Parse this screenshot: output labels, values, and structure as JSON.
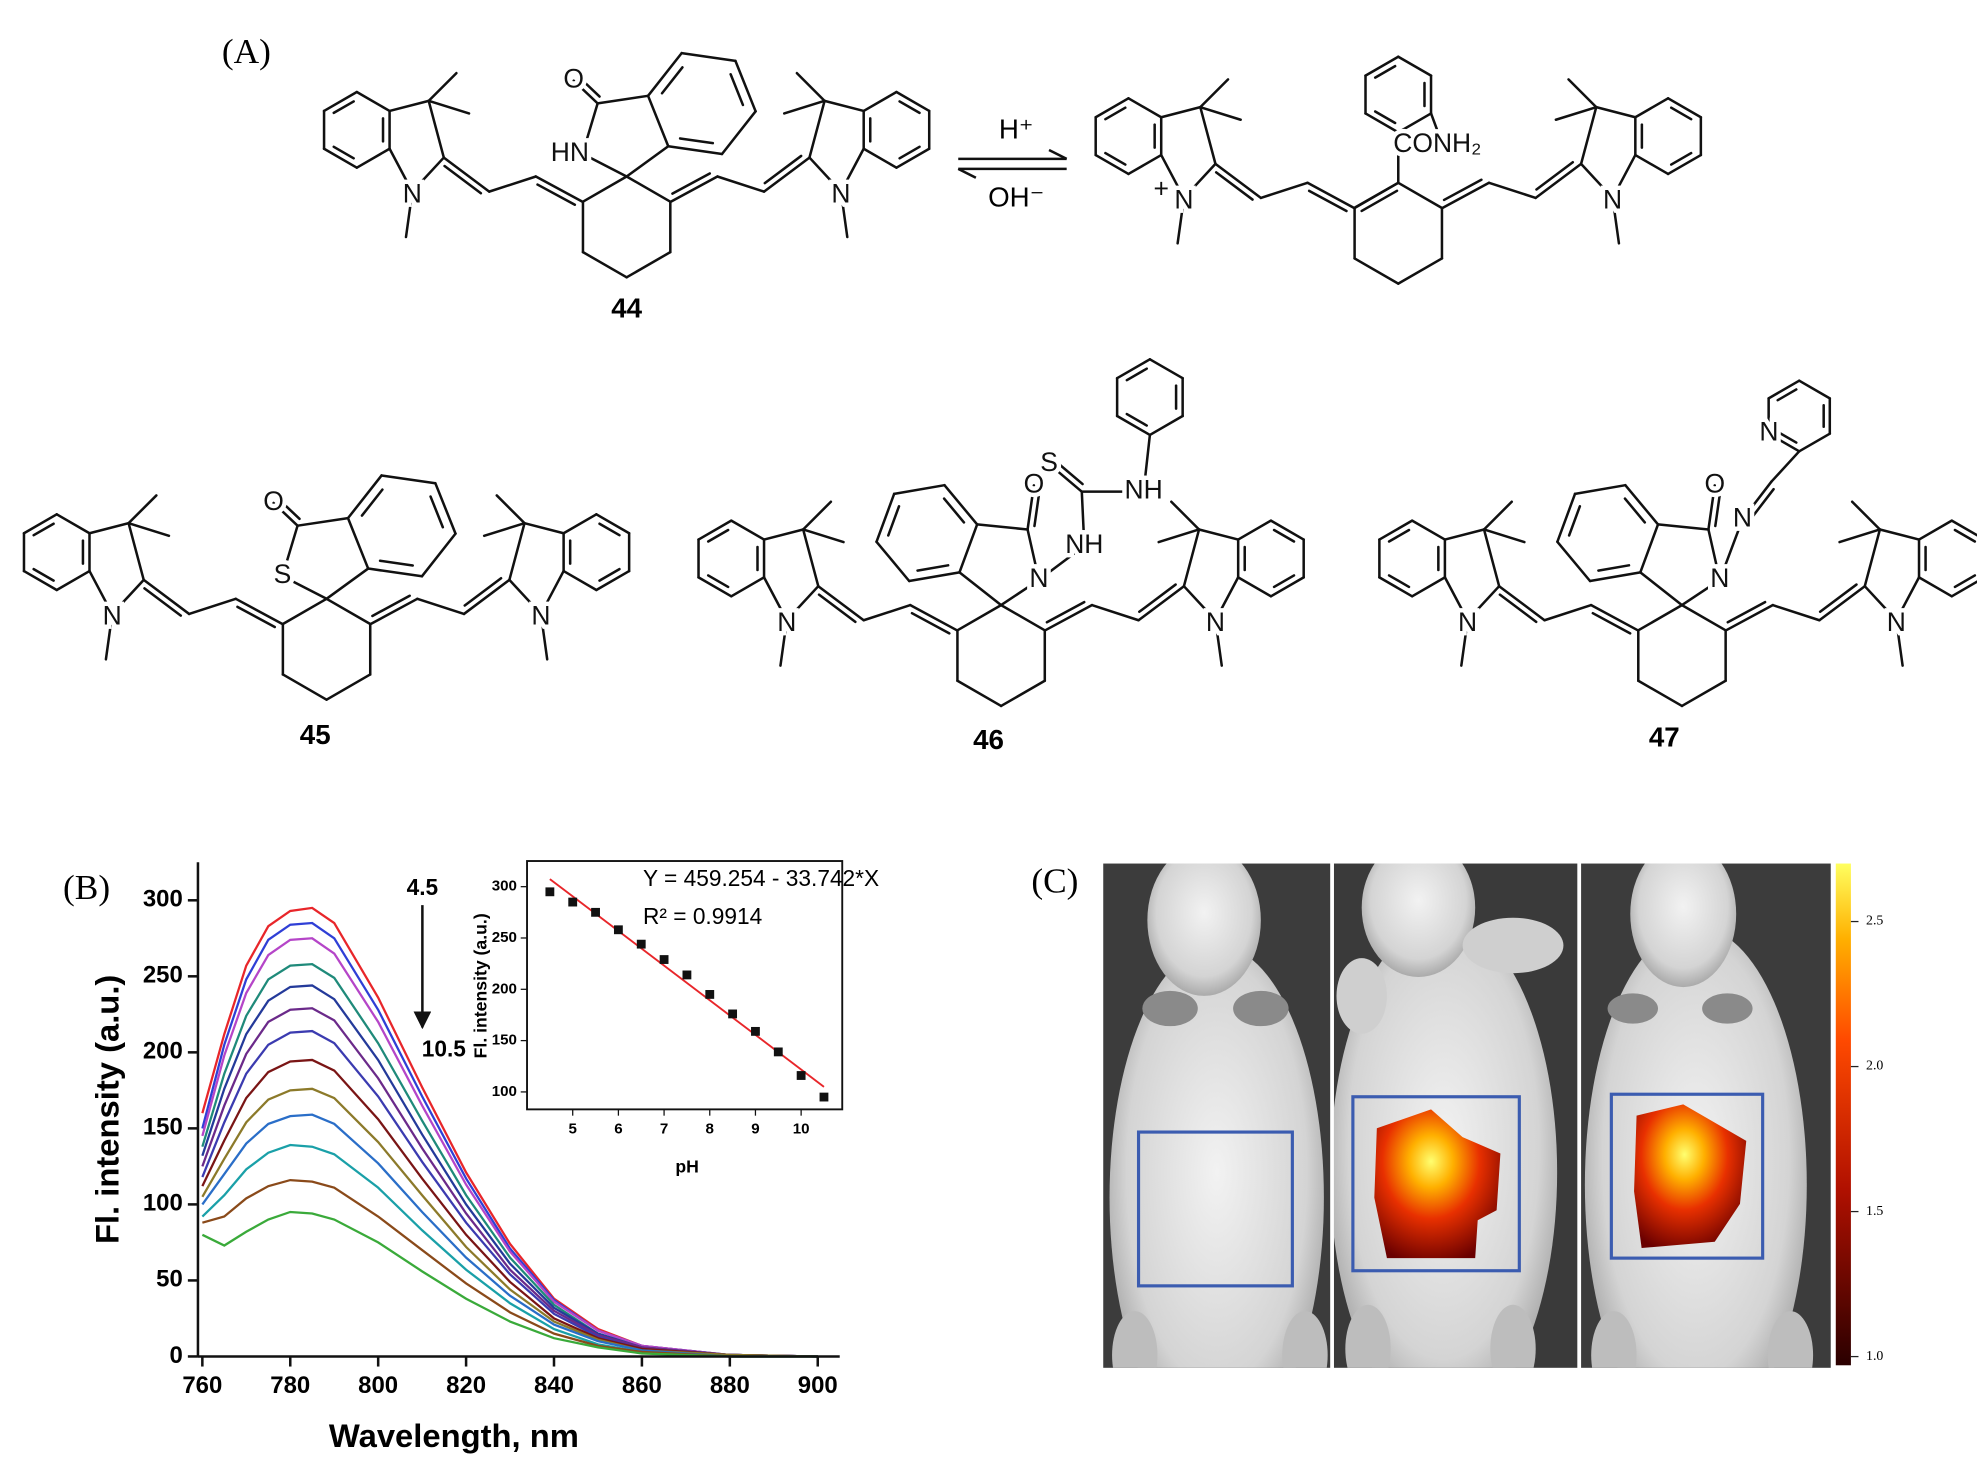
{
  "panel_labels": {
    "a": "(A)",
    "b": "(B)",
    "c": "(C)"
  },
  "scheme": {
    "reagents": {
      "forward": "H⁺",
      "reverse": "OH⁻"
    },
    "structures": [
      {
        "label": "44",
        "atoms": [
          "N",
          "N",
          "HN",
          "O"
        ]
      },
      {
        "atoms": [
          "+",
          "N",
          "N",
          "CONH₂"
        ]
      },
      {
        "label": "45",
        "atoms": [
          "N",
          "N",
          "S",
          "O"
        ]
      },
      {
        "label": "46",
        "atoms": [
          "N",
          "N",
          "N",
          "O",
          "NH",
          "S",
          "NH"
        ]
      },
      {
        "label": "47",
        "atoms": [
          "N",
          "N",
          "N",
          "O",
          "N",
          "N"
        ]
      }
    ]
  },
  "chart_data": [
    {
      "type": "line",
      "xlabel": "Wavelength, nm",
      "ylabel": "Fl. intensity (a.u.)",
      "annotations": [
        "4.5",
        "10.5"
      ],
      "x": [
        760,
        765,
        770,
        775,
        780,
        785,
        790,
        800,
        810,
        820,
        830,
        840,
        850,
        860,
        880,
        900
      ],
      "series": [
        {
          "color": "#e8262a",
          "values": [
            160,
            212,
            257,
            283,
            293,
            295,
            285,
            236,
            177,
            121,
            74,
            38,
            18,
            7,
            1,
            0
          ]
        },
        {
          "color": "#2f3fd6",
          "values": [
            150,
            205,
            248,
            274,
            284,
            285,
            275,
            228,
            171,
            117,
            71,
            37,
            17,
            7,
            1,
            0
          ]
        },
        {
          "color": "#b545c8",
          "values": [
            145,
            198,
            239,
            264,
            274,
            275,
            265,
            220,
            165,
            113,
            69,
            36,
            17,
            7,
            1,
            0
          ]
        },
        {
          "color": "#1f8a7a",
          "values": [
            138,
            186,
            224,
            248,
            257,
            258,
            249,
            206,
            155,
            106,
            65,
            34,
            15,
            6,
            1,
            0
          ]
        },
        {
          "color": "#243a9a",
          "values": [
            132,
            176,
            212,
            234,
            243,
            244,
            235,
            195,
            146,
            100,
            61,
            32,
            15,
            6,
            1,
            0
          ]
        },
        {
          "color": "#6b2a8a",
          "values": [
            125,
            165,
            199,
            220,
            228,
            229,
            221,
            183,
            137,
            94,
            57,
            30,
            14,
            6,
            1,
            0
          ]
        },
        {
          "color": "#3b3bb0",
          "values": [
            118,
            154,
            186,
            205,
            213,
            214,
            206,
            171,
            128,
            88,
            54,
            28,
            13,
            5,
            1,
            0
          ]
        },
        {
          "color": "#7a1515",
          "values": [
            112,
            142,
            170,
            187,
            194,
            195,
            188,
            156,
            117,
            80,
            49,
            25,
            12,
            5,
            1,
            0
          ]
        },
        {
          "color": "#8c7a2a",
          "values": [
            105,
            130,
            154,
            169,
            175,
            176,
            170,
            141,
            106,
            72,
            44,
            23,
            11,
            4,
            1,
            0
          ]
        },
        {
          "color": "#2a6ec8",
          "values": [
            100,
            120,
            140,
            153,
            158,
            159,
            153,
            127,
            95,
            65,
            40,
            21,
            10,
            4,
            0,
            0
          ]
        },
        {
          "color": "#1aa0a8",
          "values": [
            92,
            106,
            123,
            134,
            139,
            138,
            133,
            111,
            83,
            57,
            35,
            18,
            8,
            3,
            0,
            0
          ]
        },
        {
          "color": "#8a4a1a",
          "values": [
            88,
            92,
            104,
            112,
            116,
            115,
            111,
            92,
            70,
            48,
            29,
            15,
            7,
            3,
            0,
            0
          ]
        },
        {
          "color": "#3aaa3a",
          "values": [
            80,
            73,
            82,
            90,
            95,
            94,
            90,
            75,
            56,
            38,
            23,
            12,
            6,
            2,
            0,
            0
          ]
        }
      ],
      "xlim": [
        759,
        905
      ],
      "ylim": [
        0,
        325
      ],
      "xticks": [
        760,
        780,
        800,
        820,
        840,
        860,
        880,
        900
      ],
      "yticks": [
        0,
        50,
        100,
        150,
        200,
        250,
        300
      ]
    },
    {
      "type": "scatter",
      "xlabel": "pH",
      "ylabel": "Fl. intensity (a.u.)",
      "color": "#111111",
      "x": [
        4.5,
        5,
        5.5,
        6,
        6.5,
        7,
        7.5,
        8,
        8.5,
        9,
        9.5,
        10,
        10.5
      ],
      "values": [
        295,
        285,
        275,
        258,
        244,
        229,
        214,
        195,
        176,
        159,
        139,
        116,
        95
      ],
      "fit": {
        "equation": "Y = 459.254 - 33.742*X",
        "r2": "R² = 0.9914",
        "intercept": 459.254,
        "slope": -33.742,
        "color": "#e8262a"
      },
      "xlim": [
        4.0,
        10.9
      ],
      "ylim": [
        83,
        325
      ],
      "xticks": [
        5,
        6,
        7,
        8,
        9,
        10
      ],
      "yticks": [
        100,
        150,
        200,
        250,
        300
      ]
    }
  ],
  "colorbar": {
    "ylim": [
      0.97,
      2.7
    ],
    "ticks": [
      {
        "value": 1,
        "label": "1.0"
      },
      {
        "value": 1.5,
        "label": "1.5"
      },
      {
        "value": 2,
        "label": "2.0"
      },
      {
        "value": 2.5,
        "label": "2.5"
      }
    ]
  }
}
